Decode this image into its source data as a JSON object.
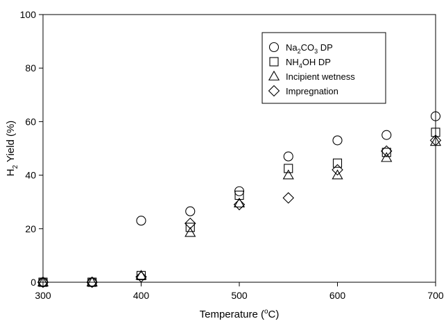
{
  "chart_data": {
    "type": "scatter",
    "title": "",
    "xlabel": {
      "prefix": "Temperature (",
      "sup": "o",
      "suffix": "C)"
    },
    "ylabel": {
      "prefix": "H",
      "sub": "2",
      "suffix": " Yield (%)"
    },
    "xlim": [
      300,
      700
    ],
    "ylim": [
      0,
      100
    ],
    "xticks": [
      "300",
      "400",
      "500",
      "600",
      "700"
    ],
    "yticks": [
      "0",
      "20",
      "40",
      "60",
      "80",
      "100"
    ],
    "grid": false,
    "legend_position": "top-right",
    "series": [
      {
        "name": "Na2CO3 DP",
        "label_parts": [
          [
            "Na",
            ""
          ],
          [
            "2",
            "sub"
          ],
          [
            "CO",
            ""
          ],
          [
            "3",
            "sub"
          ],
          [
            " DP",
            ""
          ]
        ],
        "marker": "circle",
        "x": [
          300,
          350,
          400,
          450,
          500,
          550,
          600,
          650,
          700
        ],
        "y": [
          0,
          0,
          23,
          26.5,
          34,
          47,
          53,
          55,
          62
        ]
      },
      {
        "name": "NH4OH DP",
        "label_parts": [
          [
            "NH",
            ""
          ],
          [
            "4",
            "sub"
          ],
          [
            "OH DP",
            ""
          ]
        ],
        "marker": "square",
        "x": [
          300,
          350,
          400,
          450,
          500,
          550,
          600,
          650,
          700
        ],
        "y": [
          0,
          0,
          2.5,
          20.5,
          32.5,
          42.5,
          44.5,
          48.5,
          56
        ]
      },
      {
        "name": "Incipient wetness",
        "label_parts": [
          [
            "Incipient wetness",
            ""
          ]
        ],
        "marker": "triangle",
        "x": [
          300,
          350,
          400,
          450,
          500,
          550,
          600,
          650,
          700
        ],
        "y": [
          0,
          0,
          2.5,
          18.5,
          29.5,
          40,
          40,
          46.5,
          52.5
        ]
      },
      {
        "name": "Impregnation",
        "label_parts": [
          [
            "Impregnation",
            ""
          ]
        ],
        "marker": "diamond",
        "x": [
          300,
          350,
          400,
          450,
          500,
          550,
          600,
          650,
          700
        ],
        "y": [
          0,
          0,
          2,
          22,
          29,
          31.5,
          42,
          49,
          53
        ]
      }
    ]
  }
}
